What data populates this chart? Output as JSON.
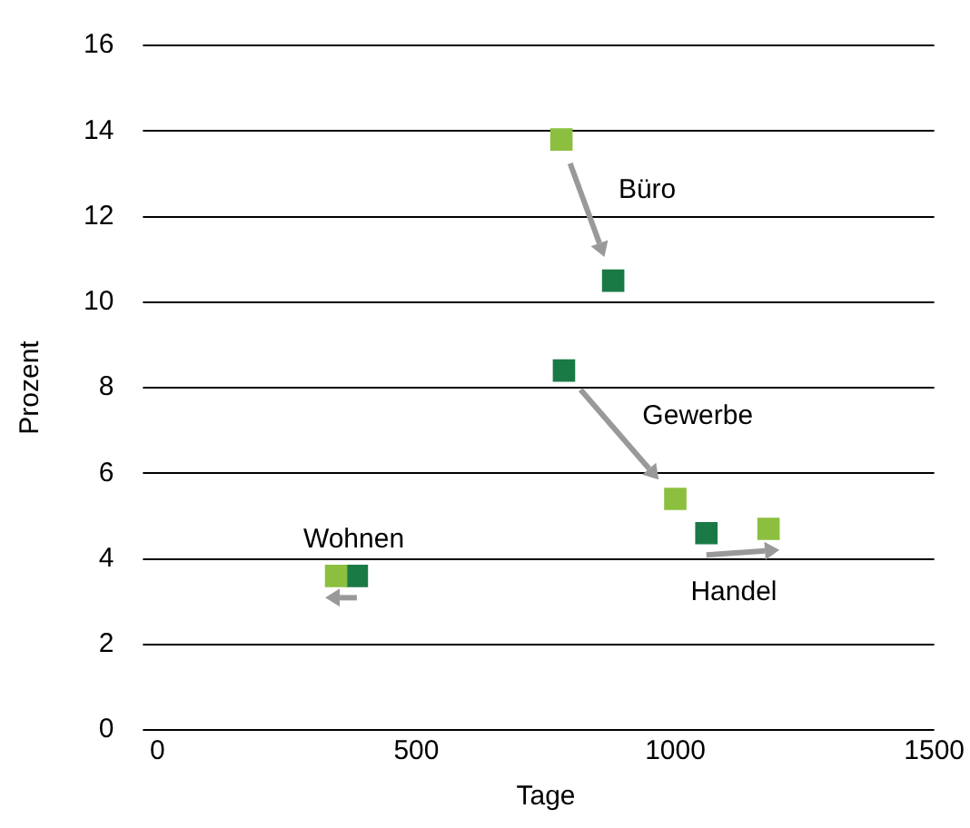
{
  "chart_data": {
    "type": "scatter",
    "xlabel": "Tage",
    "ylabel": "Prozent",
    "series": [
      {
        "color": "#8cbf3f",
        "x": [
          780,
          1000,
          1180,
          345
        ],
        "values": [
          13.8,
          5.4,
          4.7,
          3.6
        ]
      },
      {
        "color": "#1a7a46",
        "x": [
          880,
          785,
          1060,
          385
        ],
        "values": [
          10.5,
          8.4,
          4.6,
          3.6
        ]
      }
    ],
    "annotations": [
      "Büro",
      "Gewerbe",
      "Handel",
      "Wohnen"
    ],
    "xlim": [
      0,
      1500
    ],
    "xticks": [
      0,
      500,
      1000,
      1500
    ],
    "ylim": [
      0,
      16
    ],
    "yticks": [
      0,
      2,
      4,
      6,
      8,
      10,
      12,
      14,
      16
    ],
    "grid": "y",
    "legend": false,
    "marker": "square"
  }
}
